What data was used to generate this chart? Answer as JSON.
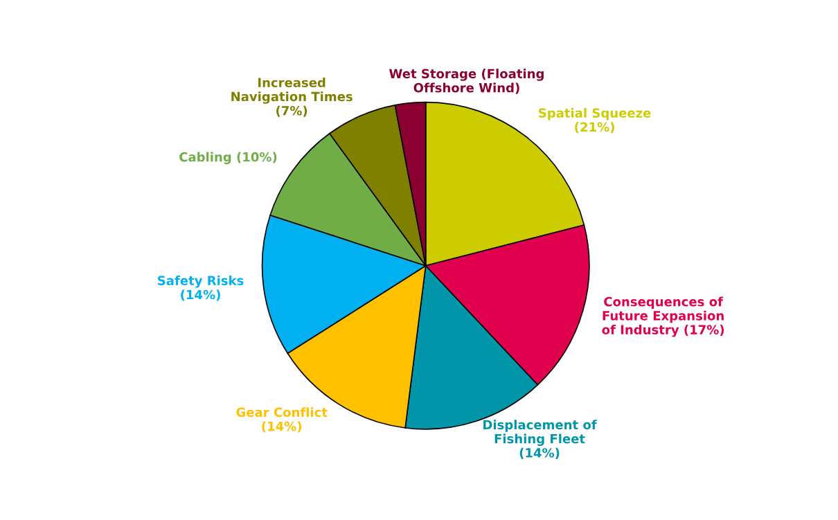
{
  "chart_data": {
    "type": "pie",
    "categories": [
      "Spatial Squeeze\n(21%)",
      "Consequences of\nFuture Expansion\nof Industry (17%)",
      "Displacement of\nFishing Fleet\n(14%)",
      "Gear Conflict\n(14%)",
      "Safety Risks\n(14%)",
      "Cabling (10%)",
      "Increased\nNavigation Times\n(7%)",
      "Wet Storage (Floating\nOffshore Wind)"
    ],
    "values": [
      21,
      17,
      14,
      14,
      14,
      10,
      7,
      3
    ],
    "colors": [
      "#cccc00",
      "#e0004d",
      "#0095a8",
      "#ffc000",
      "#00b0f0",
      "#70ad47",
      "#7f7f00",
      "#8b0030"
    ]
  }
}
